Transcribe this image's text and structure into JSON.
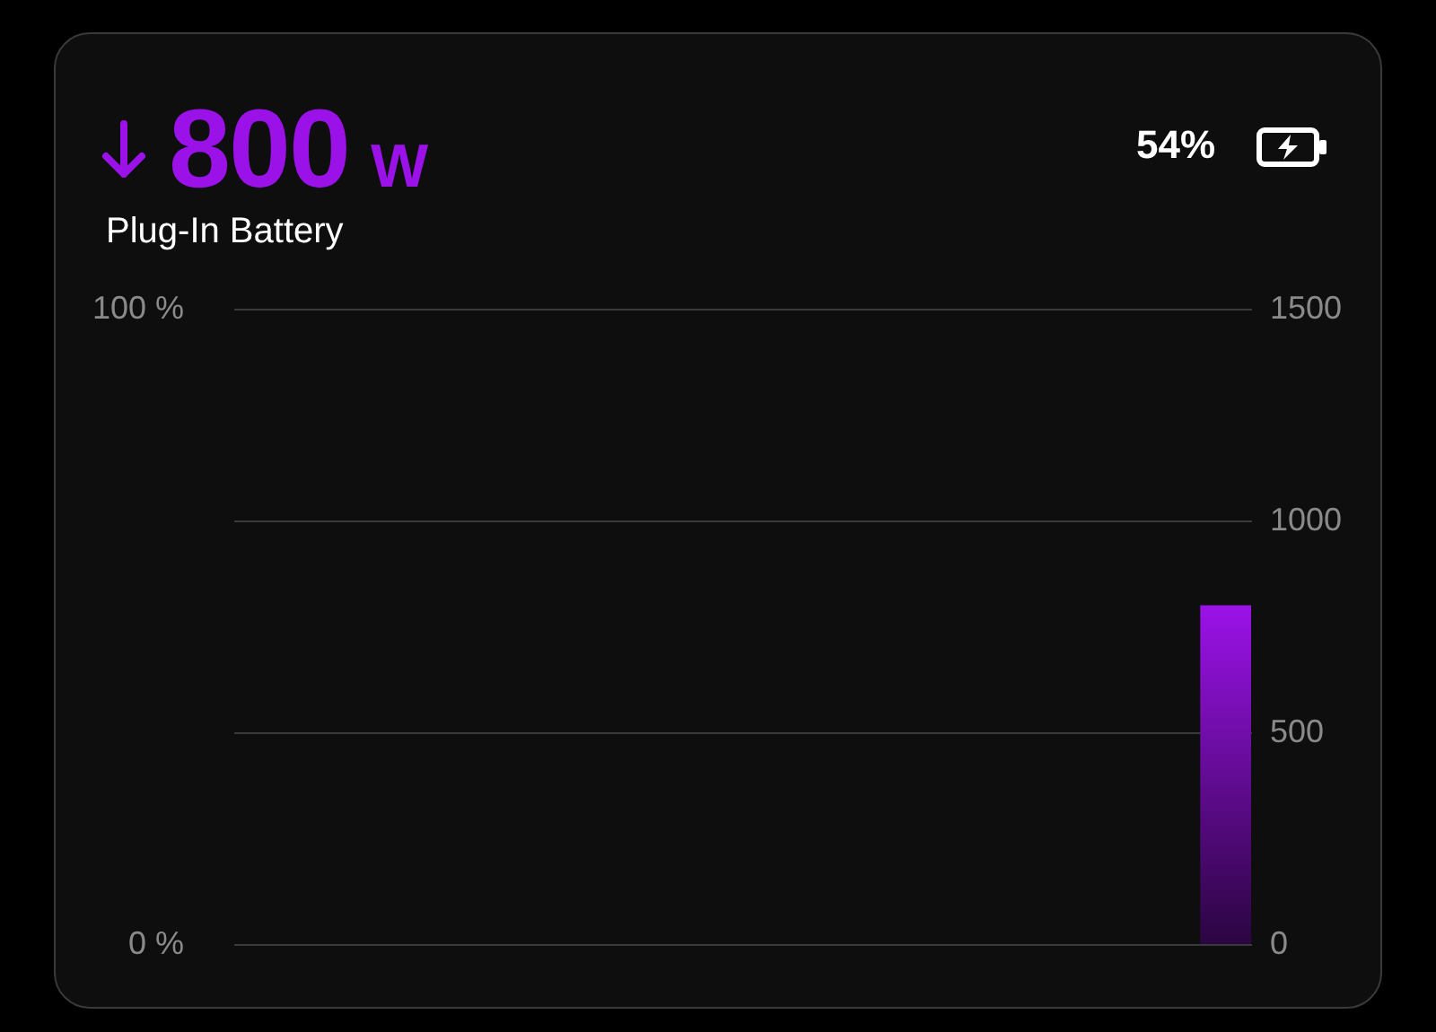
{
  "chart_data": {
    "type": "bar",
    "title": "800 W",
    "subtitle": "Plug-In Battery",
    "annotations": [
      "54%"
    ],
    "categories": [
      null,
      null,
      null,
      null,
      null,
      null,
      null,
      null,
      null,
      null,
      null,
      null,
      null,
      null,
      null,
      null,
      null,
      null,
      null,
      null
    ],
    "series": [
      {
        "color": "#9b12e8",
        "axis": "y2",
        "values": [
          null,
          null,
          null,
          null,
          null,
          null,
          null,
          null,
          null,
          null,
          null,
          null,
          null,
          null,
          null,
          null,
          null,
          null,
          null,
          800
        ]
      }
    ],
    "ylim": [
      0,
      100
    ],
    "yticks": [
      {
        "value": 0,
        "label": "0 %"
      },
      {
        "value": 100,
        "label": "100 %"
      }
    ],
    "y2lim": [
      0,
      1500
    ],
    "y2ticks": [
      0,
      500,
      1000,
      1500
    ],
    "grid": true,
    "tick_labels": "y"
  }
}
